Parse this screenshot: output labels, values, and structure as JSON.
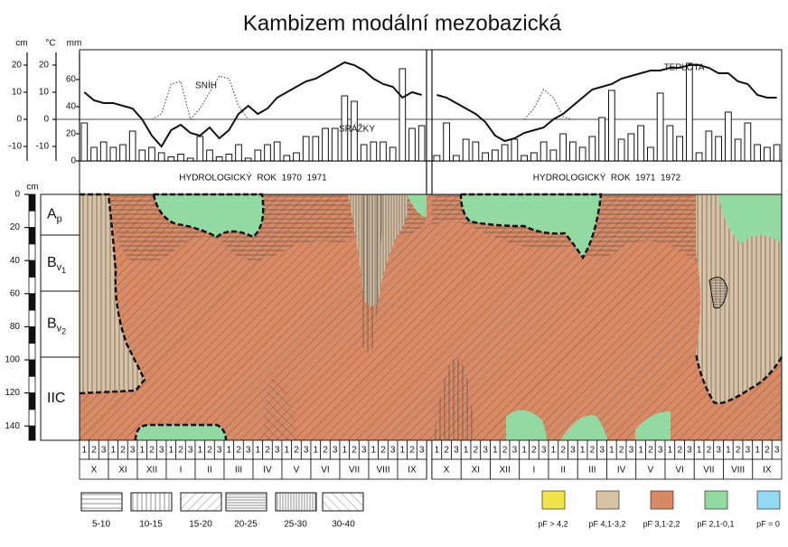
{
  "title": "Kambizem modální mezobazická",
  "climate": {
    "units": {
      "snow": "cm",
      "temp": "°C",
      "precip": "mm"
    },
    "snow_ticks": [
      20,
      10,
      0,
      -10
    ],
    "temp_ticks": [
      20,
      10,
      0,
      -10
    ],
    "precip_ticks": [
      60,
      40,
      20,
      0
    ],
    "labels": {
      "snow": "SNÍH",
      "precip": "SRÁŽKY",
      "temp": "TEPLOTA"
    },
    "years": [
      {
        "label": "HYDROLOGICKÝ  ROK  1970  1971",
        "precip": [
          28,
          10,
          14,
          10,
          12,
          22,
          8,
          10,
          6,
          3,
          5,
          2,
          18,
          8,
          3,
          5,
          12,
          2,
          8,
          12,
          14,
          4,
          6,
          18,
          18,
          24,
          24,
          48,
          44,
          12,
          14,
          14,
          10,
          68,
          24,
          26
        ],
        "temp": [
          10,
          7,
          6,
          6,
          5,
          4,
          0,
          -6,
          -10,
          -4,
          -2,
          -5,
          -6,
          -3,
          -7,
          -4,
          2,
          5,
          2,
          4,
          8,
          10,
          12,
          14,
          15,
          17,
          19,
          21,
          20,
          18,
          15,
          13,
          12,
          8,
          10,
          9
        ],
        "snow": [
          null,
          null,
          null,
          null,
          null,
          null,
          null,
          0,
          2,
          13,
          14,
          0,
          4,
          10,
          16,
          15,
          5,
          0,
          null,
          null,
          null,
          null,
          null,
          null,
          null,
          null,
          null,
          null,
          null,
          null,
          null,
          null,
          null,
          null,
          null,
          null
        ]
      },
      {
        "label": "HYDROLOGICKÝ  ROK  1971  1972",
        "precip": [
          4,
          28,
          4,
          16,
          14,
          6,
          8,
          12,
          16,
          4,
          6,
          14,
          8,
          20,
          14,
          10,
          18,
          32,
          52,
          16,
          20,
          26,
          10,
          50,
          26,
          18,
          72,
          6,
          22,
          18,
          36,
          16,
          28,
          12,
          10,
          12
        ],
        "temp": [
          9,
          8,
          6,
          4,
          2,
          -1,
          -6,
          -8,
          -7,
          -5,
          -4,
          -3,
          0,
          2,
          5,
          8,
          11,
          12,
          13,
          15,
          16,
          17,
          18,
          18,
          19,
          19,
          20,
          20,
          19,
          17,
          17,
          14,
          13,
          9,
          8,
          8
        ],
        "snow": [
          null,
          null,
          null,
          null,
          null,
          null,
          null,
          null,
          null,
          0,
          4,
          11,
          8,
          1,
          0,
          null,
          null,
          null,
          null,
          null,
          null,
          null,
          null,
          null,
          null,
          null,
          null,
          null,
          null,
          null,
          null,
          null,
          null,
          null,
          null,
          null
        ]
      }
    ]
  },
  "profile": {
    "depth_unit": "cm",
    "depth_ticks": [
      0,
      20,
      40,
      60,
      80,
      100,
      120,
      140
    ],
    "horizons": [
      {
        "main": "A",
        "sub": "p"
      },
      {
        "main": "B",
        "sub": "v",
        "subsub": "1"
      },
      {
        "main": "B",
        "sub": "v",
        "subsub": "2"
      },
      {
        "main": "IIC"
      }
    ]
  },
  "decades": [
    "1",
    "2",
    "3"
  ],
  "months": [
    "X",
    "XI",
    "XII",
    "I",
    "II",
    "III",
    "IV",
    "V",
    "VI",
    "VII",
    "VIII",
    "IX"
  ],
  "legend": {
    "hatch": [
      "5-10",
      "10-15",
      "15-20",
      "20-25",
      "25-30",
      "30-40"
    ],
    "pf": [
      {
        "label": "pF > 4,2",
        "color": "#f3e24c"
      },
      {
        "label": "pF 4,1-3,2",
        "color": "#d8c2a4"
      },
      {
        "label": "pF 3,1-2,2",
        "color": "#d98a64"
      },
      {
        "label": "pF 2,1-0,1",
        "color": "#93d9a2"
      },
      {
        "label": "pF = 0",
        "color": "#94d9f2"
      }
    ]
  }
}
